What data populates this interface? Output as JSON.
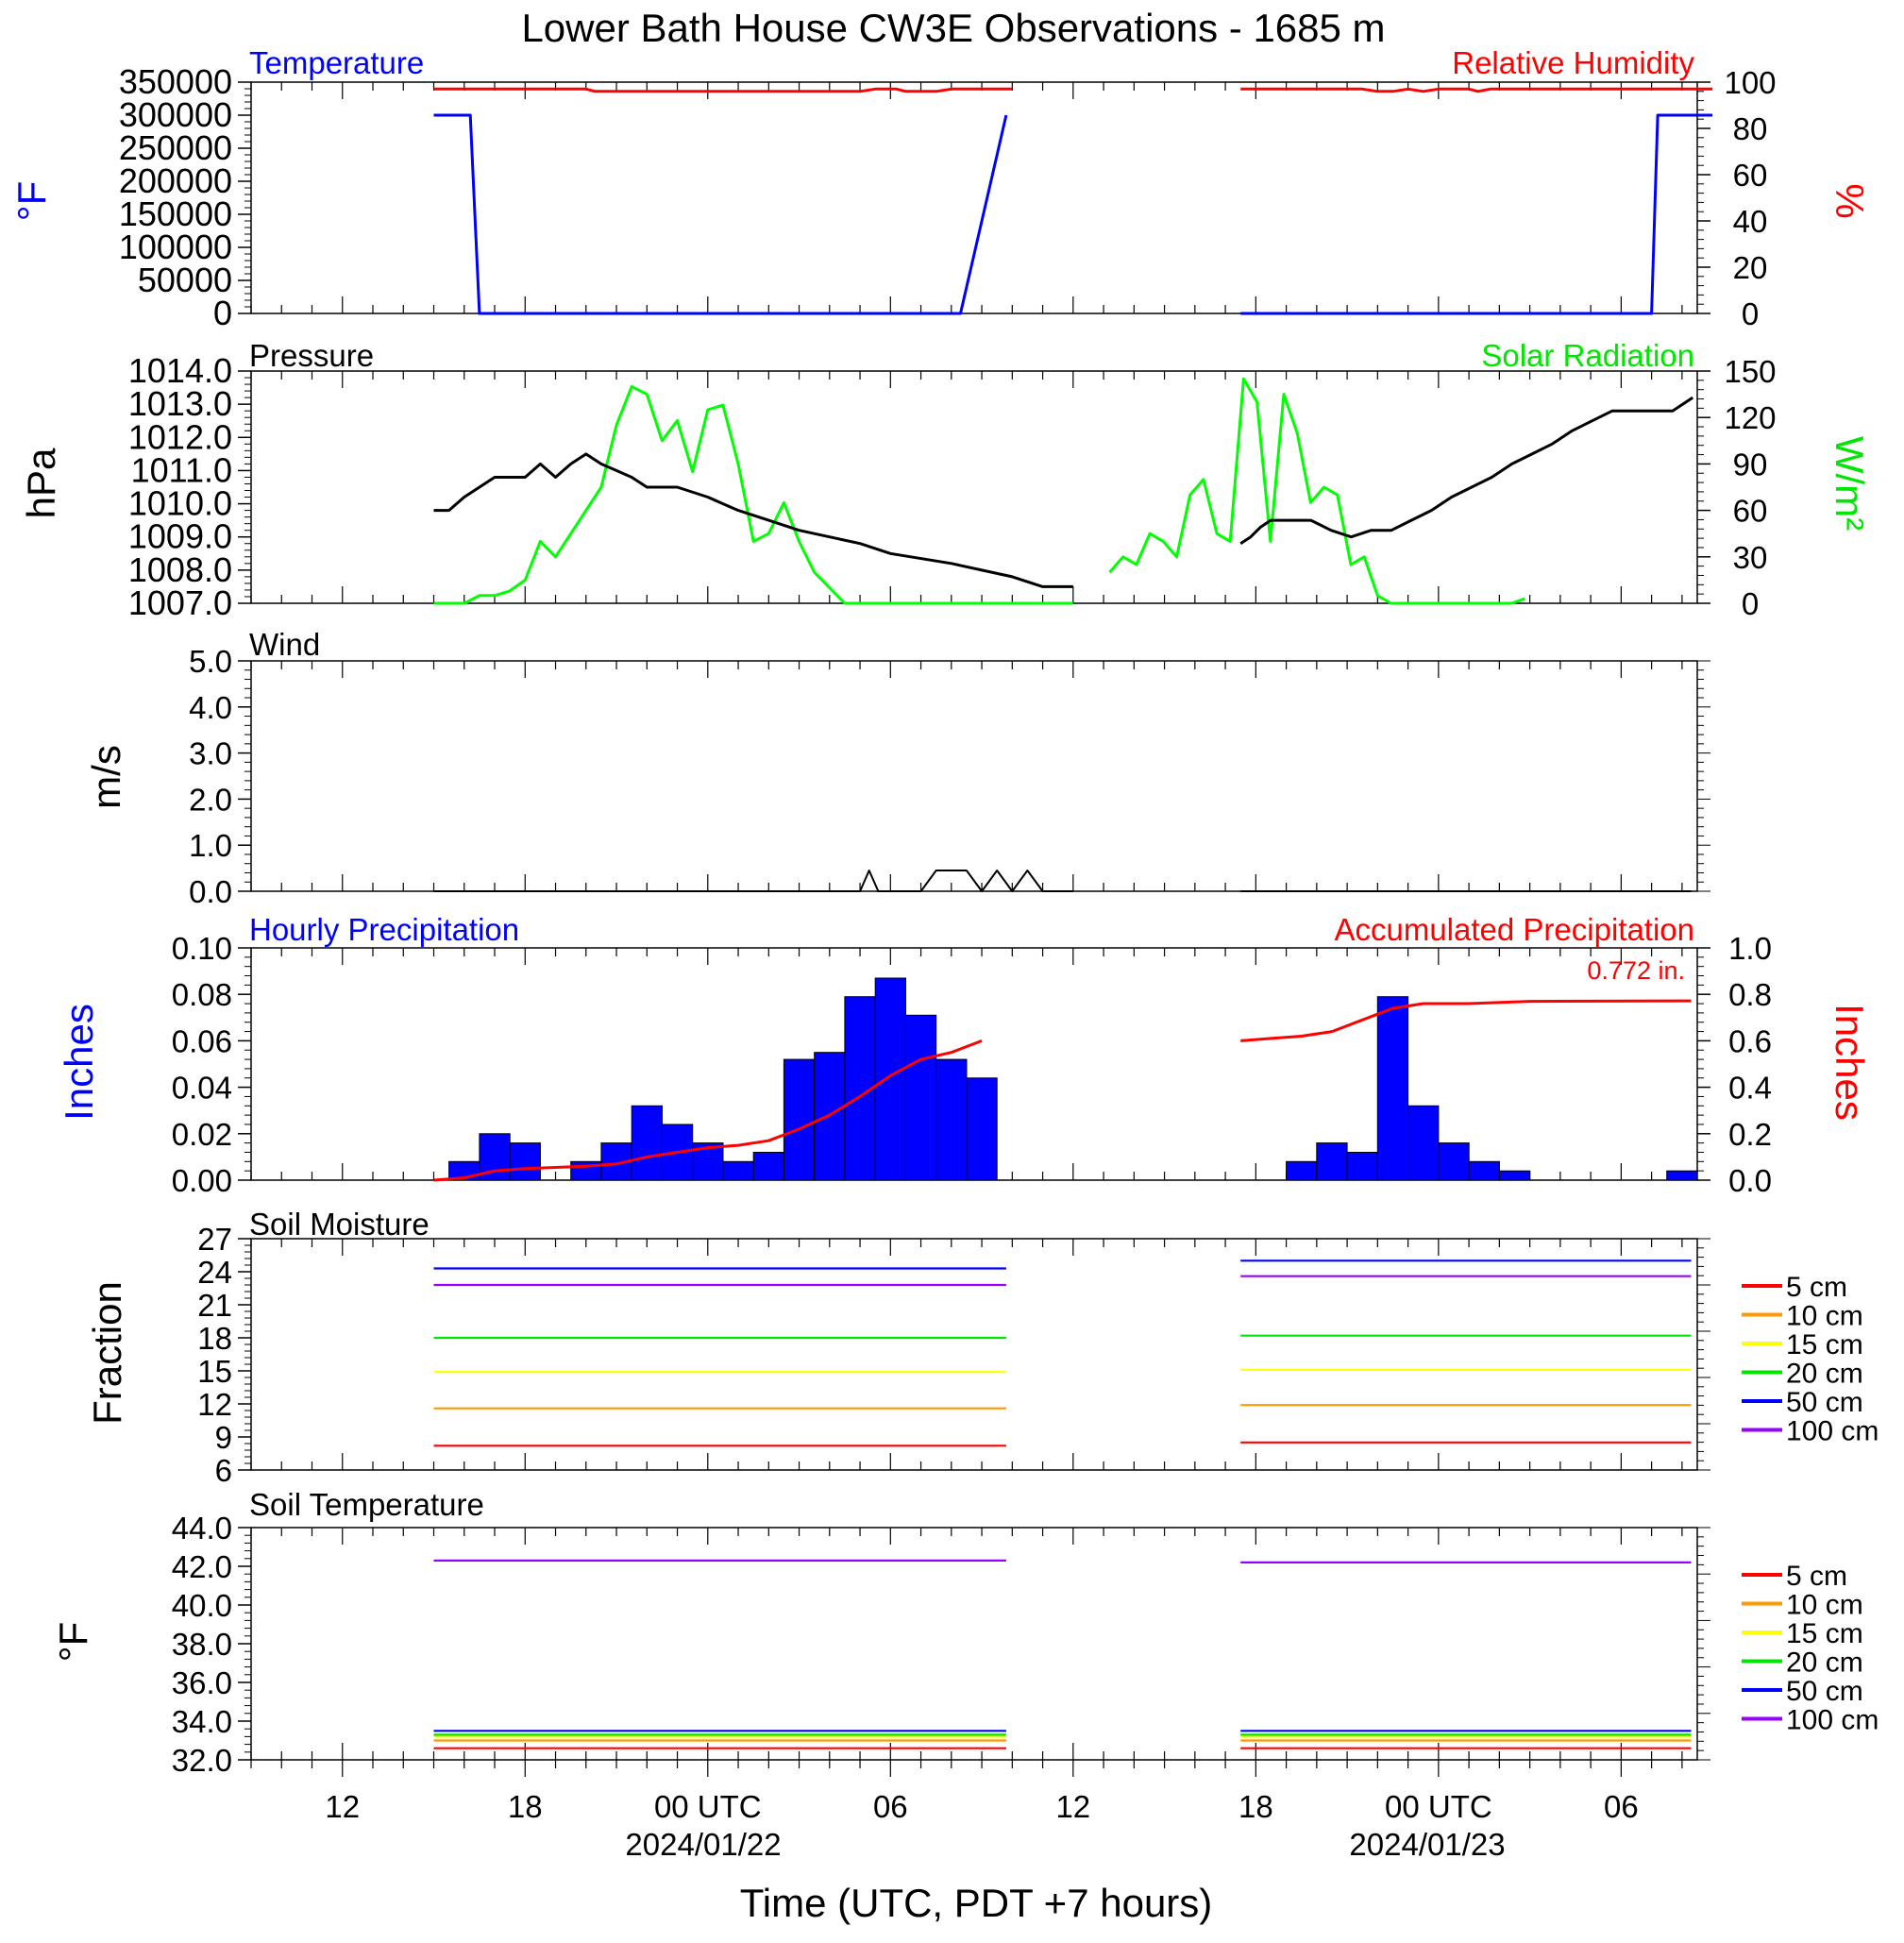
{
  "title": "Lower Bath House CW3E Observations - 1685 m",
  "xaxis": {
    "label": "Time (UTC, PDT +7 hours)",
    "tick_labels": [
      "12",
      "18",
      "00 UTC",
      "06",
      "12",
      "18",
      "00 UTC",
      "06"
    ],
    "date_labels": [
      "2024/01/22",
      "2024/01/23"
    ]
  },
  "panels": {
    "temp_rh": {
      "left_title": "Temperature",
      "right_title": "Relative Humidity",
      "left_unit": "°F",
      "right_unit": "%",
      "left_ticks": [
        "350000",
        "300000",
        "250000",
        "200000",
        "150000",
        "100000",
        "50000",
        "0"
      ],
      "right_ticks": [
        "100",
        "80",
        "60",
        "40",
        "20",
        "0"
      ]
    },
    "pressure_solar": {
      "left_title": "Pressure",
      "right_title": "Solar Radiation",
      "left_unit": "hPa",
      "right_unit": "W/m²",
      "left_ticks": [
        "1014.0",
        "1013.0",
        "1012.0",
        "1011.0",
        "1010.0",
        "1009.0",
        "1008.0",
        "1007.0"
      ],
      "right_ticks": [
        "150",
        "120",
        "90",
        "60",
        "30",
        "0"
      ]
    },
    "wind": {
      "left_title": "Wind",
      "left_unit": "m/s",
      "left_ticks": [
        "5.0",
        "4.0",
        "3.0",
        "2.0",
        "1.0",
        "0.0"
      ]
    },
    "precip": {
      "left_title": "Hourly Precipitation",
      "right_title": "Accumulated Precipitation",
      "left_unit": "Inches",
      "right_unit": "Inches",
      "total_label": "0.772 in.",
      "left_ticks": [
        "0.10",
        "0.08",
        "0.06",
        "0.04",
        "0.02",
        "0.00"
      ],
      "right_ticks": [
        "1.0",
        "0.8",
        "0.6",
        "0.4",
        "0.2",
        "0.0"
      ]
    },
    "soil_moisture": {
      "left_title": "Soil Moisture",
      "left_unit": "Fraction",
      "left_ticks": [
        "27",
        "24",
        "21",
        "18",
        "15",
        "12",
        "9",
        "6"
      ]
    },
    "soil_temp": {
      "left_title": "Soil Temperature",
      "left_unit": "°F",
      "left_ticks": [
        "44.0",
        "42.0",
        "40.0",
        "38.0",
        "36.0",
        "34.0",
        "32.0"
      ]
    }
  },
  "legend_labels": [
    "5 cm",
    "10 cm",
    "15 cm",
    "20 cm",
    "50 cm",
    "100 cm"
  ],
  "colors": {
    "temperature": "#0000ff",
    "humidity": "#ff0000",
    "pressure": "#000000",
    "solar": "#00ff00",
    "precip_bar": "#0000ff",
    "precip_accum": "#ff0000",
    "depth_5": "#ff0000",
    "depth_10": "#ff9900",
    "depth_15": "#ffff00",
    "depth_20": "#00e600",
    "depth_50": "#0000ff",
    "depth_100": "#9900ff"
  },
  "chart_data": [
    {
      "type": "line",
      "panel": "temp_rh",
      "title": "Temperature / Relative Humidity",
      "x_unit": "hours since 2024-01-21 09:00 UTC",
      "xlim": [
        0,
        47.5
      ],
      "ylim_left": [
        0,
        350000
      ],
      "ylim_right": [
        0,
        100
      ],
      "series": [
        {
          "name": "Temperature",
          "axis": "left",
          "points": [
            [
              6,
              300000
            ],
            [
              7.2,
              300000
            ],
            [
              7.5,
              0
            ],
            [
              23.3,
              0
            ],
            [
              24.8,
              300000
            ]
          ],
          "points2": [
            [
              32.5,
              0
            ],
            [
              46,
              0
            ],
            [
              46.2,
              300000
            ],
            [
              48,
              300000
            ]
          ]
        },
        {
          "name": "Relative Humidity",
          "axis": "right",
          "points": [
            [
              6,
              97
            ],
            [
              11,
              97
            ],
            [
              11.3,
              96
            ],
            [
              20,
              96
            ],
            [
              20.5,
              97
            ],
            [
              21.2,
              97
            ],
            [
              21.5,
              96
            ],
            [
              22.5,
              96
            ],
            [
              23,
              97
            ],
            [
              25,
              97
            ]
          ],
          "points2": [
            [
              32.5,
              97
            ],
            [
              36.5,
              97
            ],
            [
              37,
              96
            ],
            [
              37.5,
              96
            ],
            [
              38,
              97
            ],
            [
              38.5,
              96
            ],
            [
              39,
              97
            ],
            [
              40,
              97
            ],
            [
              40.3,
              96
            ],
            [
              40.7,
              97
            ],
            [
              48,
              97
            ]
          ]
        }
      ]
    },
    {
      "type": "line",
      "panel": "pressure_solar",
      "title": "Pressure / Solar Radiation",
      "x_unit": "hours since 2024-01-21 09:00 UTC",
      "xlim": [
        0,
        47.5
      ],
      "ylim_left": [
        1007,
        1014
      ],
      "ylim_right": [
        0,
        150
      ],
      "series": [
        {
          "name": "Pressure",
          "axis": "left",
          "points": [
            [
              6,
              1009.8
            ],
            [
              6.5,
              1009.8
            ],
            [
              7,
              1010.2
            ],
            [
              7.5,
              1010.5
            ],
            [
              8,
              1010.8
            ],
            [
              9,
              1010.8
            ],
            [
              9.5,
              1011.2
            ],
            [
              10,
              1010.8
            ],
            [
              10.5,
              1011.2
            ],
            [
              11,
              1011.5
            ],
            [
              11.5,
              1011.2
            ],
            [
              12,
              1011
            ],
            [
              12.5,
              1010.8
            ],
            [
              13,
              1010.5
            ],
            [
              14,
              1010.5
            ],
            [
              15,
              1010.2
            ],
            [
              15.5,
              1010
            ],
            [
              16,
              1009.8
            ],
            [
              17,
              1009.5
            ],
            [
              18,
              1009.2
            ],
            [
              19,
              1009
            ],
            [
              20,
              1008.8
            ],
            [
              21,
              1008.5
            ],
            [
              23,
              1008.2
            ],
            [
              24,
              1008
            ],
            [
              25,
              1007.8
            ],
            [
              26,
              1007.5
            ],
            [
              27,
              1007.5
            ]
          ],
          "points2": [
            [
              32.5,
              1008.8
            ],
            [
              33,
              1009
            ],
            [
              33.5,
              1009.3
            ],
            [
              34,
              1009.5
            ],
            [
              36,
              1009.5
            ],
            [
              37,
              1009.2
            ],
            [
              38,
              1009
            ],
            [
              39,
              1009.2
            ],
            [
              40,
              1009.2
            ],
            [
              41,
              1009.5
            ],
            [
              42,
              1009.8
            ],
            [
              43,
              1010.2
            ],
            [
              44,
              1010.5
            ],
            [
              45,
              1010.8
            ],
            [
              46,
              1011.2
            ],
            [
              47,
              1011.5
            ],
            [
              48,
              1011.8
            ],
            [
              49,
              1012.2
            ],
            [
              50,
              1012.5
            ],
            [
              51,
              1012.8
            ],
            [
              52,
              1012.8
            ],
            [
              54,
              1012.8
            ],
            [
              55,
              1013.2
            ]
          ]
        },
        {
          "name": "Solar Radiation",
          "axis": "right",
          "points": [
            [
              6,
              0
            ],
            [
              7,
              0
            ],
            [
              7.5,
              5
            ],
            [
              8,
              5
            ],
            [
              8.5,
              8
            ],
            [
              9,
              15
            ],
            [
              9.5,
              40
            ],
            [
              10,
              30
            ],
            [
              10.5,
              45
            ],
            [
              11,
              60
            ],
            [
              11.5,
              75
            ],
            [
              12,
              115
            ],
            [
              12.5,
              140
            ],
            [
              13,
              135
            ],
            [
              13.5,
              105
            ],
            [
              14,
              118
            ],
            [
              14.5,
              85
            ],
            [
              15,
              125
            ],
            [
              15.5,
              128
            ],
            [
              16,
              90
            ],
            [
              16.5,
              40
            ],
            [
              17,
              45
            ],
            [
              17.5,
              65
            ],
            [
              18,
              40
            ],
            [
              18.5,
              20
            ],
            [
              19,
              10
            ],
            [
              19.5,
              0
            ],
            [
              27,
              0
            ]
          ],
          "points2": [
            [
              32.5,
              20
            ],
            [
              33,
              30
            ],
            [
              33.5,
              25
            ],
            [
              34,
              45
            ],
            [
              34.5,
              40
            ],
            [
              35,
              30
            ],
            [
              35.5,
              70
            ],
            [
              36,
              80
            ],
            [
              36.5,
              45
            ],
            [
              37,
              40
            ],
            [
              37.5,
              145
            ],
            [
              38,
              130
            ],
            [
              38.5,
              40
            ],
            [
              39,
              135
            ],
            [
              39.5,
              110
            ],
            [
              40,
              65
            ],
            [
              40.5,
              75
            ],
            [
              41,
              70
            ],
            [
              41.5,
              25
            ],
            [
              42,
              30
            ],
            [
              42.5,
              5
            ],
            [
              43,
              0
            ],
            [
              47.5,
              0
            ],
            [
              48,
              3
            ]
          ]
        }
      ]
    },
    {
      "type": "line",
      "panel": "wind",
      "title": "Wind",
      "x_unit": "hours since 2024-01-21 09:00 UTC",
      "xlim": [
        0,
        47.5
      ],
      "ylim": [
        0,
        5
      ],
      "series": [
        {
          "name": "Wind",
          "points": [
            [
              6,
              0
            ],
            [
              20,
              0
            ],
            [
              20.3,
              0.45
            ],
            [
              20.6,
              0
            ],
            [
              22,
              0
            ],
            [
              22.5,
              0.45
            ],
            [
              23,
              0.45
            ],
            [
              23.5,
              0.45
            ],
            [
              24,
              0
            ],
            [
              24.5,
              0.45
            ],
            [
              25,
              0
            ],
            [
              25.5,
              0.45
            ],
            [
              26,
              0
            ],
            [
              27,
              0
            ]
          ],
          "points2": [
            [
              32.5,
              0
            ],
            [
              48,
              0
            ]
          ]
        }
      ]
    },
    {
      "type": "bar",
      "panel": "precip",
      "title": "Hourly / Accumulated Precipitation",
      "x_unit": "hours since 2024-01-21 09:00 UTC",
      "xlim": [
        0,
        47.5
      ],
      "ylim_left": [
        0,
        0.1
      ],
      "ylim_right": [
        0,
        1
      ],
      "bars": [
        {
          "x": 7,
          "value": 0.008
        },
        {
          "x": 8,
          "value": 0.02
        },
        {
          "x": 9,
          "value": 0.016
        },
        {
          "x": 11,
          "value": 0.008
        },
        {
          "x": 12,
          "value": 0.016
        },
        {
          "x": 13,
          "value": 0.032
        },
        {
          "x": 14,
          "value": 0.024
        },
        {
          "x": 15,
          "value": 0.016
        },
        {
          "x": 16,
          "value": 0.008
        },
        {
          "x": 17,
          "value": 0.012
        },
        {
          "x": 18,
          "value": 0.052
        },
        {
          "x": 19,
          "value": 0.055
        },
        {
          "x": 20,
          "value": 0.079
        },
        {
          "x": 21,
          "value": 0.087
        },
        {
          "x": 22,
          "value": 0.071
        },
        {
          "x": 23,
          "value": 0.052
        },
        {
          "x": 24,
          "value": 0.044
        },
        {
          "x": 34.5,
          "value": 0.008
        },
        {
          "x": 35.5,
          "value": 0.016
        },
        {
          "x": 36.5,
          "value": 0.012
        },
        {
          "x": 37.5,
          "value": 0.079
        },
        {
          "x": 38.5,
          "value": 0.032
        },
        {
          "x": 39.5,
          "value": 0.016
        },
        {
          "x": 40.5,
          "value": 0.008
        },
        {
          "x": 41.5,
          "value": 0.004
        },
        {
          "x": 47,
          "value": 0.004
        }
      ],
      "accumulated": [
        [
          6,
          0
        ],
        [
          7,
          0.01
        ],
        [
          8,
          0.04
        ],
        [
          9,
          0.05
        ],
        [
          11,
          0.06
        ],
        [
          12,
          0.07
        ],
        [
          13,
          0.1
        ],
        [
          14,
          0.12
        ],
        [
          15,
          0.14
        ],
        [
          16,
          0.15
        ],
        [
          17,
          0.17
        ],
        [
          18,
          0.22
        ],
        [
          19,
          0.28
        ],
        [
          20,
          0.36
        ],
        [
          21,
          0.45
        ],
        [
          22,
          0.52
        ],
        [
          23,
          0.55
        ],
        [
          24,
          0.6
        ]
      ],
      "accumulated2": [
        [
          32.5,
          0.6
        ],
        [
          33.5,
          0.61
        ],
        [
          34.5,
          0.62
        ],
        [
          35.5,
          0.64
        ],
        [
          36.5,
          0.69
        ],
        [
          37.5,
          0.74
        ],
        [
          38.5,
          0.76
        ],
        [
          40,
          0.76
        ],
        [
          42,
          0.77
        ],
        [
          48,
          0.772
        ]
      ]
    },
    {
      "type": "line",
      "panel": "soil_moisture",
      "title": "Soil Moisture",
      "x_unit": "hours since 2024-01-21 09:00 UTC",
      "xlim": [
        0,
        47.5
      ],
      "ylim": [
        6,
        27
      ],
      "series": [
        {
          "name": "5 cm",
          "level": 8.2,
          "level2": 8.5
        },
        {
          "name": "10 cm",
          "level": 11.6,
          "level2": 11.9
        },
        {
          "name": "15 cm",
          "level": 14.9,
          "level2": 15.1
        },
        {
          "name": "20 cm",
          "level": 18.0,
          "level2": 18.2
        },
        {
          "name": "50 cm",
          "level": 24.3,
          "level2": 25.0
        },
        {
          "name": "100 cm",
          "level": 22.8,
          "level2": 23.6
        }
      ]
    },
    {
      "type": "line",
      "panel": "soil_temp",
      "title": "Soil Temperature",
      "x_unit": "hours since 2024-01-21 09:00 UTC",
      "xlim": [
        0,
        47.5
      ],
      "ylim": [
        32,
        44
      ],
      "series": [
        {
          "name": "5 cm",
          "level": 32.6,
          "level2": 32.6
        },
        {
          "name": "10 cm",
          "level": 33.0,
          "level2": 33.0
        },
        {
          "name": "15 cm",
          "level": 33.2,
          "level2": 33.2
        },
        {
          "name": "20 cm",
          "level": 33.3,
          "level2": 33.3
        },
        {
          "name": "50 cm",
          "level": 33.5,
          "level2": 33.5
        },
        {
          "name": "100 cm",
          "level": 42.3,
          "level2": 42.2
        }
      ]
    }
  ]
}
